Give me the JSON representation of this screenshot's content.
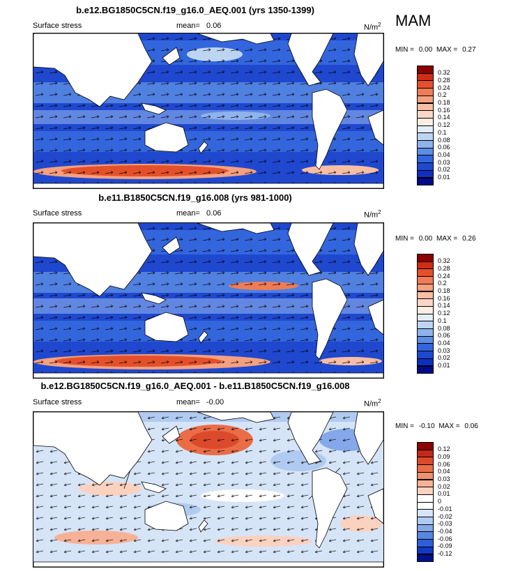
{
  "season": "MAM",
  "panels": [
    {
      "title": "b.e12.BG1850C5CN.f19_g16.0_AEQ.001 (yrs 1350-1399)",
      "left_label": "Surface stress",
      "mean_label": "mean=",
      "mean_value": "0.06",
      "units_base": "N/m",
      "units_exp": "2",
      "min_label": "MIN =",
      "min_value": "0.00",
      "max_label": "MAX =",
      "max_value": "0.27",
      "levels": [
        "0.32",
        "0.28",
        "0.24",
        "0.2",
        "0.18",
        "0.16",
        "0.14",
        "0.12",
        "0.1",
        "0.08",
        "0.06",
        "0.04",
        "0.03",
        "0.02",
        "0.01"
      ],
      "colors": [
        "#8b0000",
        "#cd2e15",
        "#e4502a",
        "#ef7c56",
        "#f5a07f",
        "#f8bea4",
        "#fad7c6",
        "#fdeee4",
        "#e4eefa",
        "#bdd5f3",
        "#8fb3ec",
        "#5c8ee3",
        "#3366dd",
        "#1f48cf",
        "#0f2ec2",
        "#000a8a"
      ]
    },
    {
      "title": "b.e11.B1850C5CN.f19_g16.008 (yrs 981-1000)",
      "left_label": "Surface stress",
      "mean_label": "mean=",
      "mean_value": "0.06",
      "units_base": "N/m",
      "units_exp": "2",
      "min_label": "MIN =",
      "min_value": "0.00",
      "max_label": "MAX =",
      "max_value": "0.26",
      "levels": [
        "0.32",
        "0.28",
        "0.24",
        "0.2",
        "0.18",
        "0.16",
        "0.14",
        "0.12",
        "0.1",
        "0.08",
        "0.06",
        "0.04",
        "0.03",
        "0.02",
        "0.01"
      ],
      "colors": [
        "#8b0000",
        "#cd2e15",
        "#e4502a",
        "#ef7c56",
        "#f5a07f",
        "#f8bea4",
        "#fad7c6",
        "#fdeee4",
        "#e4eefa",
        "#bdd5f3",
        "#8fb3ec",
        "#5c8ee3",
        "#3366dd",
        "#1f48cf",
        "#0f2ec2",
        "#000a8a"
      ]
    },
    {
      "title": "b.e12.BG1850C5CN.f19_g16.0_AEQ.001 - b.e11.B1850C5CN.f19_g16.008",
      "left_label": "Surface stress",
      "mean_label": "mean=",
      "mean_value": "-0.00",
      "units_base": "N/m",
      "units_exp": "2",
      "min_label": "MIN =",
      "min_value": "-0.10",
      "max_label": "MAX =",
      "max_value": "0.06",
      "levels": [
        "0.12",
        "0.09",
        "0.06",
        "0.04",
        "0.03",
        "0.02",
        "0.01",
        "0",
        "-0.01",
        "-0.02",
        "-0.03",
        "-0.04",
        "-0.06",
        "-0.09",
        "-0.12"
      ],
      "colors": [
        "#8b0000",
        "#c3281a",
        "#dc4a2c",
        "#ea6d48",
        "#f38f6c",
        "#f7b196",
        "#fbd2c0",
        "#ffffff",
        "#ffffff",
        "#d6e4f8",
        "#b0cbf1",
        "#84a8e9",
        "#5987df",
        "#2f5fd6",
        "#1238c4",
        "#00108f"
      ]
    }
  ]
}
